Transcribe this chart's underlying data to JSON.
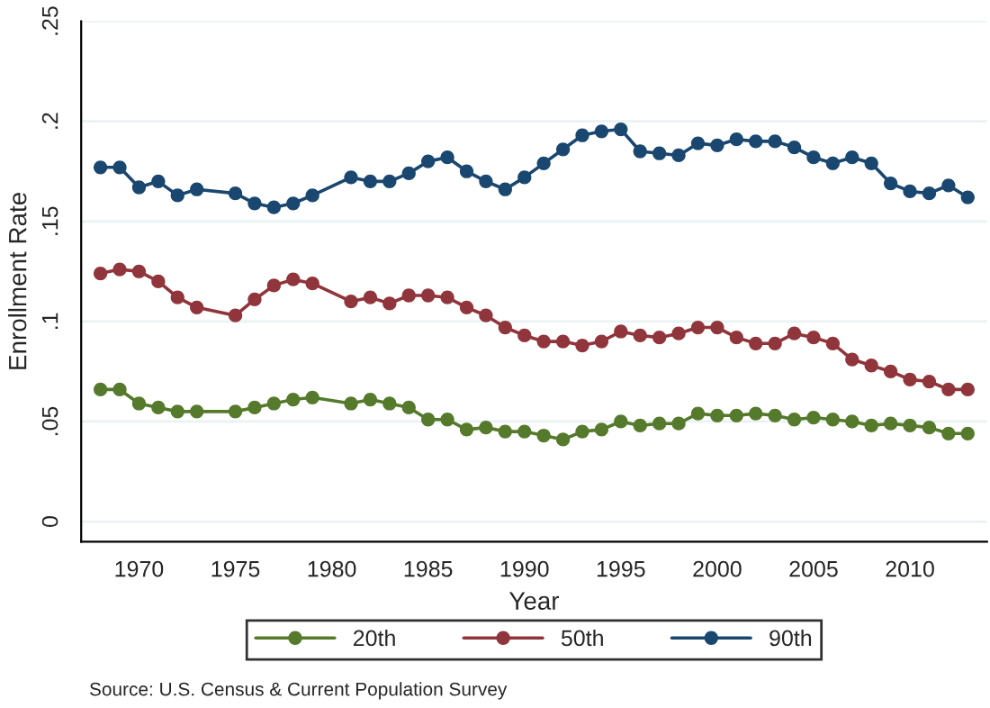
{
  "chart_data": {
    "type": "line",
    "xlabel": "Year",
    "ylabel": "Enrollment Rate",
    "x": [
      1968,
      1969,
      1970,
      1971,
      1972,
      1973,
      1975,
      1976,
      1977,
      1978,
      1979,
      1981,
      1982,
      1983,
      1984,
      1985,
      1986,
      1987,
      1988,
      1989,
      1990,
      1991,
      1992,
      1993,
      1994,
      1995,
      1996,
      1997,
      1998,
      1999,
      2000,
      2001,
      2002,
      2003,
      2004,
      2005,
      2006,
      2007,
      2008,
      2009,
      2010,
      2011,
      2012,
      2013
    ],
    "series": [
      {
        "name": "20th",
        "color": "#557a2c",
        "values": [
          0.066,
          0.066,
          0.059,
          0.057,
          0.055,
          0.055,
          0.055,
          0.057,
          0.059,
          0.061,
          0.062,
          0.059,
          0.061,
          0.059,
          0.057,
          0.051,
          0.051,
          0.046,
          0.047,
          0.045,
          0.045,
          0.043,
          0.041,
          0.045,
          0.046,
          0.05,
          0.048,
          0.049,
          0.049,
          0.054,
          0.053,
          0.053,
          0.054,
          0.053,
          0.051,
          0.052,
          0.051,
          0.05,
          0.048,
          0.049,
          0.048,
          0.047,
          0.044,
          0.044
        ]
      },
      {
        "name": "50th",
        "color": "#90353b",
        "values": [
          0.124,
          0.126,
          0.125,
          0.12,
          0.112,
          0.107,
          0.103,
          0.111,
          0.118,
          0.121,
          0.119,
          0.11,
          0.112,
          0.109,
          0.113,
          0.113,
          0.112,
          0.107,
          0.103,
          0.097,
          0.093,
          0.09,
          0.09,
          0.088,
          0.09,
          0.095,
          0.093,
          0.092,
          0.094,
          0.097,
          0.097,
          0.092,
          0.089,
          0.089,
          0.094,
          0.092,
          0.089,
          0.081,
          0.078,
          0.075,
          0.071,
          0.07,
          0.066,
          0.066
        ]
      },
      {
        "name": "90th",
        "color": "#1a476f",
        "values": [
          0.177,
          0.177,
          0.167,
          0.17,
          0.163,
          0.166,
          0.164,
          0.159,
          0.157,
          0.159,
          0.163,
          0.172,
          0.17,
          0.17,
          0.174,
          0.18,
          0.182,
          0.175,
          0.17,
          0.166,
          0.172,
          0.179,
          0.186,
          0.193,
          0.195,
          0.196,
          0.185,
          0.184,
          0.183,
          0.189,
          0.188,
          0.191,
          0.19,
          0.19,
          0.187,
          0.182,
          0.179,
          0.182,
          0.179,
          0.169,
          0.165,
          0.164,
          0.168,
          0.162
        ]
      }
    ],
    "xlim": [
      1967,
      2014
    ],
    "xticks": [
      1970,
      1975,
      1980,
      1985,
      1990,
      1995,
      2000,
      2005,
      2010
    ],
    "ylim": [
      -0.01,
      0.25
    ],
    "yticks": [
      {
        "value": 0,
        "label": "0"
      },
      {
        "value": 0.05,
        "label": ".05"
      },
      {
        "value": 0.1,
        "label": ".1"
      },
      {
        "value": 0.15,
        "label": ".15"
      },
      {
        "value": 0.2,
        "label": ".2"
      },
      {
        "value": 0.25,
        "label": ".25"
      }
    ],
    "grid": "y",
    "legend": "bottom",
    "marker": "circle",
    "line_style": "solid",
    "annotations": [
      "Source: U.S. Census & Current Population Survey"
    ]
  }
}
